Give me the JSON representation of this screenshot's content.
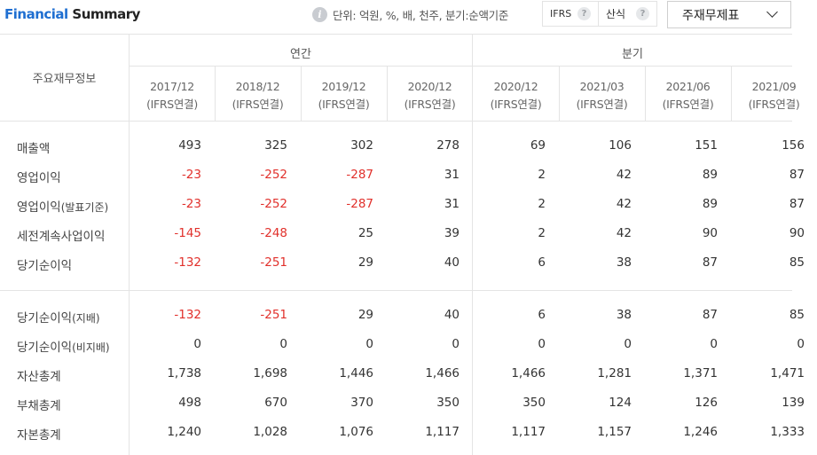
{
  "header": {
    "title_part1": "Financial",
    "title_part2": " Summary",
    "unit_text": "단위: 억원, %, 배, 천주, 분기:순액기준",
    "ifrs_label": "IFRS",
    "calc_label": "산식",
    "help_glyph": "?",
    "info_glyph": "i",
    "report_select": "주재무제표"
  },
  "table": {
    "corner_label": "주요재무정보",
    "group_annual": "연간",
    "group_quarter": "분기",
    "periods": [
      {
        "date": "2017/12",
        "basis": "(IFRS연결)"
      },
      {
        "date": "2018/12",
        "basis": "(IFRS연결)"
      },
      {
        "date": "2019/12",
        "basis": "(IFRS연결)"
      },
      {
        "date": "2020/12",
        "basis": "(IFRS연결)"
      },
      {
        "date": "2020/12",
        "basis": "(IFRS연결)"
      },
      {
        "date": "2021/03",
        "basis": "(IFRS연결)"
      },
      {
        "date": "2021/06",
        "basis": "(IFRS연결)"
      },
      {
        "date": "2021/09",
        "basis": "(IFRS연결)"
      }
    ],
    "rows": [
      {
        "label": "매출액",
        "sub": "",
        "values": [
          "493",
          "325",
          "302",
          "278",
          "69",
          "106",
          "151",
          "156"
        ]
      },
      {
        "label": "영업이익",
        "sub": "",
        "values": [
          "-23",
          "-252",
          "-287",
          "31",
          "2",
          "42",
          "89",
          "87"
        ]
      },
      {
        "label": "영업이익",
        "sub": "(발표기준)",
        "values": [
          "-23",
          "-252",
          "-287",
          "31",
          "2",
          "42",
          "89",
          "87"
        ]
      },
      {
        "label": "세전계속사업이익",
        "sub": "",
        "values": [
          "-145",
          "-248",
          "25",
          "39",
          "2",
          "42",
          "90",
          "90"
        ]
      },
      {
        "label": "당기순이익",
        "sub": "",
        "values": [
          "-132",
          "-251",
          "29",
          "40",
          "6",
          "38",
          "87",
          "85"
        ]
      },
      {
        "label": "당기순이익",
        "sub": "(지배)",
        "values": [
          "-132",
          "-251",
          "29",
          "40",
          "6",
          "38",
          "87",
          "85"
        ]
      },
      {
        "label": "당기순이익",
        "sub": "(비지배)",
        "values": [
          "0",
          "0",
          "0",
          "0",
          "0",
          "0",
          "0",
          "0"
        ]
      },
      {
        "label": "자산총계",
        "sub": "",
        "values": [
          "1,738",
          "1,698",
          "1,446",
          "1,466",
          "1,466",
          "1,281",
          "1,371",
          "1,471"
        ]
      },
      {
        "label": "부채총계",
        "sub": "",
        "values": [
          "498",
          "670",
          "370",
          "350",
          "350",
          "124",
          "126",
          "139"
        ]
      },
      {
        "label": "자본총계",
        "sub": "",
        "values": [
          "1,240",
          "1,028",
          "1,076",
          "1,117",
          "1,117",
          "1,157",
          "1,246",
          "1,333"
        ]
      }
    ]
  },
  "colors": {
    "title_accent": "#1f6fd1",
    "negative": "#e1302b",
    "grid_line": "#e4e4e4"
  }
}
